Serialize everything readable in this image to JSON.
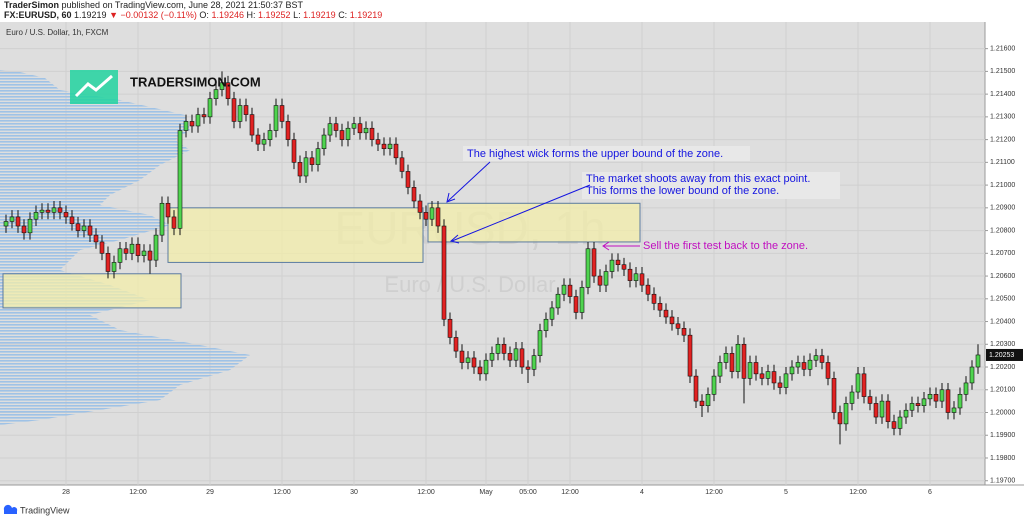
{
  "header": {
    "author": "TraderSimon",
    "published": "published on TradingView.com, June 28, 2021 21:50:37 BST",
    "symbol": "FX:EURUSD, 60",
    "price": 1.19219,
    "change": "▼ −0.00132 (−0.11%)",
    "ohlc": [
      {
        "label": "O:",
        "value": 1.19246
      },
      {
        "label": "H:",
        "value": 1.19252
      },
      {
        "label": "L:",
        "value": 1.19219
      },
      {
        "label": "C:",
        "value": 1.19219
      }
    ]
  },
  "logo": "TRADERSIMON.COM",
  "footer": "TradingView",
  "chart_data": {
    "type": "candlestick",
    "title": "Euro / U.S. Dollar, 1h, FXCM",
    "watermark": [
      "EURUSD, 1h",
      "Euro / U.S. Dollar"
    ],
    "up_color": "#4fd44f",
    "down_color": "#e22222",
    "categories": [
      null,
      null,
      null,
      null,
      null,
      null,
      null,
      null,
      null,
      null,
      "28",
      null,
      null,
      null,
      null,
      null,
      null,
      null,
      null,
      null,
      null,
      null,
      "12:00",
      null,
      null,
      null,
      null,
      null,
      null,
      null,
      null,
      null,
      null,
      null,
      "29",
      null,
      null,
      null,
      null,
      null,
      null,
      null,
      null,
      null,
      null,
      null,
      "12:00",
      null,
      null,
      null,
      null,
      null,
      null,
      null,
      null,
      null,
      null,
      null,
      "30",
      null,
      null,
      null,
      null,
      null,
      null,
      null,
      null,
      null,
      null,
      null,
      "12:00",
      null,
      null,
      null,
      null,
      null,
      null,
      null,
      null,
      null,
      "May",
      null,
      null,
      null,
      null,
      null,
      null,
      "05:00",
      null,
      null,
      null,
      null,
      null,
      null,
      "12:00",
      null,
      null,
      null,
      null,
      null,
      null,
      null,
      null,
      null,
      null,
      null,
      "4",
      null,
      null,
      null,
      null,
      null,
      null,
      null,
      null,
      null,
      null,
      null,
      "12:00",
      null,
      null,
      null,
      null,
      null,
      null,
      null,
      null,
      null,
      null,
      null,
      "5",
      null,
      null,
      null,
      null,
      null,
      null,
      null,
      null,
      null,
      null,
      null,
      "12:00",
      null,
      null,
      null,
      null,
      null,
      null,
      null,
      null,
      null,
      null,
      null,
      "6",
      null,
      null,
      null,
      null,
      null,
      null,
      null,
      null
    ],
    "open": [
      1.2082,
      1.2084,
      1.2086,
      1.2082,
      1.2079,
      1.2085,
      1.2088,
      1.2089,
      1.2088,
      1.209,
      1.2088,
      1.2086,
      1.2083,
      1.208,
      1.2082,
      1.2078,
      1.2075,
      1.207,
      1.2062,
      1.2066,
      1.2072,
      1.207,
      1.2074,
      1.2069,
      1.2071,
      1.2067,
      1.2078,
      1.2092,
      1.2086,
      1.2081,
      1.2124,
      1.2128,
      1.2126,
      1.2131,
      1.213,
      1.2138,
      1.2142,
      1.2145,
      1.2138,
      1.2128,
      1.2135,
      1.2131,
      1.2122,
      1.2118,
      1.212,
      1.2124,
      1.2135,
      1.2128,
      1.212,
      1.211,
      1.2104,
      1.2112,
      1.2109,
      1.2116,
      1.2122,
      1.2127,
      1.2124,
      1.212,
      1.2125,
      1.2127,
      1.2123,
      1.2125,
      1.212,
      1.2118,
      1.2116,
      1.2118,
      1.2112,
      1.2106,
      1.2099,
      1.2093,
      1.2088,
      1.2085,
      1.209,
      1.2082,
      1.2041,
      1.2033,
      1.2027,
      1.2022,
      1.2024,
      1.202,
      1.2017,
      1.2023,
      1.2026,
      1.203,
      1.2026,
      1.2023,
      1.2028,
      1.202,
      1.2019,
      1.2025,
      1.2036,
      1.2041,
      1.2046,
      1.2052,
      1.2056,
      1.2051,
      1.2044,
      1.2055,
      1.2072,
      1.206,
      1.2056,
      1.2062,
      1.2067,
      1.2065,
      1.2063,
      1.2058,
      1.2061,
      1.2056,
      1.2052,
      1.2048,
      1.2045,
      1.2042,
      1.2039,
      1.2037,
      1.2034,
      1.2016,
      1.2005,
      1.2003,
      1.2008,
      1.2016,
      1.2022,
      1.2026,
      1.2018,
      1.203,
      1.2015,
      1.2022,
      1.2017,
      1.2015,
      1.2018,
      1.2013,
      1.2011,
      1.2017,
      1.202,
      1.2022,
      1.2019,
      1.2023,
      1.2025,
      1.2022,
      1.2015,
      1.2,
      1.1995,
      1.2004,
      1.2009,
      1.2017,
      1.2007,
      1.2004,
      1.1998,
      1.2005,
      1.1996,
      1.1993,
      1.1998,
      1.2001,
      1.2004,
      1.2003,
      1.2006,
      1.2008,
      1.2005,
      1.201,
      1.2,
      1.2002,
      1.2008,
      1.2013,
      1.202
    ],
    "high": [
      1.2087,
      1.2089,
      1.2089,
      1.2085,
      1.2088,
      1.2091,
      1.2092,
      1.2092,
      1.2093,
      1.2093,
      1.2091,
      1.2089,
      1.2086,
      1.2085,
      1.2085,
      1.2081,
      1.2078,
      1.2073,
      1.2069,
      1.2075,
      1.2075,
      1.2077,
      1.2077,
      1.2074,
      1.2074,
      1.2081,
      1.2095,
      1.2095,
      1.2089,
      1.2127,
      1.2131,
      1.2131,
      1.2134,
      1.2134,
      1.2141,
      1.2145,
      1.215,
      1.2148,
      1.2141,
      1.2138,
      1.2138,
      1.2134,
      1.2125,
      1.2123,
      1.2127,
      1.2138,
      1.2138,
      1.2131,
      1.2123,
      1.2113,
      1.2115,
      1.2115,
      1.2119,
      1.2125,
      1.213,
      1.213,
      1.2127,
      1.2128,
      1.213,
      1.213,
      1.2128,
      1.2128,
      1.2123,
      1.2121,
      1.2121,
      1.2121,
      1.2115,
      1.2109,
      1.2102,
      1.2096,
      1.2091,
      1.2093,
      1.2093,
      1.2085,
      1.2044,
      1.2036,
      1.203,
      1.2027,
      1.2027,
      1.2023,
      1.2026,
      1.2029,
      1.2033,
      1.2033,
      1.2029,
      1.2031,
      1.2031,
      1.2023,
      1.2028,
      1.2039,
      1.2044,
      1.2049,
      1.2055,
      1.2059,
      1.2059,
      1.2054,
      1.2058,
      1.2075,
      1.2075,
      1.2063,
      1.2065,
      1.207,
      1.207,
      1.2068,
      1.2066,
      1.2064,
      1.2064,
      1.2059,
      1.2055,
      1.2051,
      1.2048,
      1.2045,
      1.2042,
      1.204,
      1.2037,
      1.2019,
      1.2008,
      1.2011,
      1.2019,
      1.2025,
      1.2029,
      1.2029,
      1.2034,
      1.2033,
      1.2025,
      1.2025,
      1.202,
      1.2021,
      1.2021,
      1.2016,
      1.202,
      1.2023,
      1.2025,
      1.2025,
      1.2026,
      1.2028,
      1.2028,
      1.2025,
      1.2018,
      1.2003,
      1.2007,
      1.2012,
      1.202,
      1.202,
      1.201,
      1.2007,
      1.2008,
      1.2008,
      1.1999,
      1.2001,
      1.2004,
      1.2007,
      1.2007,
      1.2009,
      1.2011,
      1.2011,
      1.2013,
      1.2013,
      1.2005,
      1.2011,
      1.2016,
      1.2023,
      1.203
    ],
    "low": [
      1.2079,
      1.2081,
      1.2079,
      1.2076,
      1.2076,
      1.2082,
      1.2085,
      1.2085,
      1.2085,
      1.2085,
      1.2083,
      1.208,
      1.2077,
      1.2077,
      1.2075,
      1.2072,
      1.2067,
      1.2059,
      1.2059,
      1.2063,
      1.2067,
      1.2067,
      1.2066,
      1.2066,
      1.2061,
      1.2064,
      1.2075,
      1.2083,
      1.2078,
      1.2078,
      1.2121,
      1.2123,
      1.2123,
      1.2127,
      1.2127,
      1.2135,
      1.2139,
      1.2135,
      1.2125,
      1.2125,
      1.2128,
      1.2119,
      1.2115,
      1.2115,
      1.2117,
      1.2121,
      1.2125,
      1.2117,
      1.2107,
      1.2101,
      1.2101,
      1.2106,
      1.2106,
      1.2113,
      1.2119,
      1.2121,
      1.2117,
      1.2117,
      1.2122,
      1.212,
      1.212,
      1.2117,
      1.2115,
      1.2113,
      1.2113,
      1.2109,
      1.2103,
      1.2096,
      1.209,
      1.2085,
      1.2082,
      1.2082,
      1.2079,
      1.2038,
      1.203,
      1.2024,
      1.2019,
      1.2019,
      1.2017,
      1.2014,
      1.2014,
      1.202,
      1.2023,
      1.2023,
      1.202,
      1.202,
      1.2017,
      1.2013,
      1.2016,
      1.2022,
      1.2033,
      1.2038,
      1.2043,
      1.2049,
      1.2048,
      1.2041,
      1.2041,
      1.2052,
      1.2057,
      1.2053,
      1.2053,
      1.2059,
      1.2062,
      1.206,
      1.2055,
      1.2055,
      1.2053,
      1.2049,
      1.2045,
      1.2042,
      1.2039,
      1.2036,
      1.2034,
      1.2031,
      1.2013,
      1.2002,
      1.1998,
      1.2,
      1.2005,
      1.2013,
      1.2019,
      1.2015,
      1.2015,
      1.2004,
      1.2012,
      1.2014,
      1.2012,
      1.2012,
      1.201,
      1.2008,
      1.2008,
      1.2014,
      1.2017,
      1.2016,
      1.2016,
      1.202,
      1.2019,
      1.2012,
      1.1997,
      1.1986,
      1.1992,
      1.2001,
      1.2006,
      1.2004,
      1.2001,
      1.1995,
      1.1995,
      1.1993,
      1.199,
      1.199,
      1.1995,
      1.1998,
      1.2,
      1.2,
      1.2003,
      1.2002,
      1.2002,
      1.1997,
      1.1997,
      1.1999,
      1.2005,
      1.201,
      1.2017
    ],
    "close": [
      1.2084,
      1.2086,
      1.2082,
      1.2079,
      1.2085,
      1.2088,
      1.2089,
      1.2088,
      1.209,
      1.2088,
      1.2086,
      1.2083,
      1.208,
      1.2082,
      1.2078,
      1.2075,
      1.207,
      1.2062,
      1.2066,
      1.2072,
      1.207,
      1.2074,
      1.2069,
      1.2071,
      1.2067,
      1.2078,
      1.2092,
      1.2086,
      1.2081,
      1.2124,
      1.2128,
      1.2126,
      1.2131,
      1.213,
      1.2138,
      1.2142,
      1.2145,
      1.2138,
      1.2128,
      1.2135,
      1.2131,
      1.2122,
      1.2118,
      1.212,
      1.2124,
      1.2135,
      1.2128,
      1.212,
      1.211,
      1.2104,
      1.2112,
      1.2109,
      1.2116,
      1.2122,
      1.2127,
      1.2124,
      1.212,
      1.2125,
      1.2127,
      1.2123,
      1.2125,
      1.212,
      1.2118,
      1.2116,
      1.2118,
      1.2112,
      1.2106,
      1.2099,
      1.2093,
      1.2088,
      1.2085,
      1.209,
      1.2082,
      1.2041,
      1.2033,
      1.2027,
      1.2022,
      1.2024,
      1.202,
      1.2017,
      1.2023,
      1.2026,
      1.203,
      1.2026,
      1.2023,
      1.2028,
      1.202,
      1.2019,
      1.2025,
      1.2036,
      1.2041,
      1.2046,
      1.2052,
      1.2056,
      1.2051,
      1.2044,
      1.2055,
      1.2072,
      1.206,
      1.2056,
      1.2062,
      1.2067,
      1.2065,
      1.2063,
      1.2058,
      1.2061,
      1.2056,
      1.2052,
      1.2048,
      1.2045,
      1.2042,
      1.2039,
      1.2037,
      1.2034,
      1.2016,
      1.2005,
      1.2003,
      1.2008,
      1.2016,
      1.2022,
      1.2026,
      1.2018,
      1.203,
      1.2015,
      1.2022,
      1.2017,
      1.2015,
      1.2018,
      1.2013,
      1.2011,
      1.2017,
      1.202,
      1.2022,
      1.2019,
      1.2023,
      1.2025,
      1.2022,
      1.2015,
      1.2,
      1.1995,
      1.2004,
      1.2009,
      1.2017,
      1.2007,
      1.2004,
      1.1998,
      1.2005,
      1.1996,
      1.1993,
      1.1998,
      1.2001,
      1.2004,
      1.2003,
      1.2006,
      1.2008,
      1.2005,
      1.201,
      1.2,
      1.2002,
      1.2008,
      1.2013,
      1.202,
      1.20253
    ],
    "ylim": [
      1.1969,
      1.2166
    ],
    "yticks": [
      {
        "value": 1.216,
        "label": "1.21600"
      },
      {
        "value": 1.215,
        "label": "1.21500"
      },
      {
        "value": 1.214,
        "label": "1.21400"
      },
      {
        "value": 1.213,
        "label": "1.21300"
      },
      {
        "value": 1.212,
        "label": "1.21200"
      },
      {
        "value": 1.211,
        "label": "1.21100"
      },
      {
        "value": 1.21,
        "label": "1.21000"
      },
      {
        "value": 1.209,
        "label": "1.20900"
      },
      {
        "value": 1.208,
        "label": "1.20800"
      },
      {
        "value": 1.207,
        "label": "1.20700"
      },
      {
        "value": 1.206,
        "label": "1.20600"
      },
      {
        "value": 1.205,
        "label": "1.20500"
      },
      {
        "value": 1.204,
        "label": "1.20400"
      },
      {
        "value": 1.203,
        "label": "1.20300"
      },
      {
        "value": 1.202,
        "label": "1.20200"
      },
      {
        "value": 1.201,
        "label": "1.20100"
      },
      {
        "value": 1.2,
        "label": "1.20000"
      },
      {
        "value": 1.199,
        "label": "1.19900"
      },
      {
        "value": 1.198,
        "label": "1.19800"
      },
      {
        "value": 1.197,
        "label": "1.19700"
      }
    ],
    "grid": true,
    "zones": [
      {
        "top": 1.2061,
        "bottom": 1.2046
      },
      {
        "top": 1.209,
        "bottom": 1.2066
      },
      {
        "top": 1.2092,
        "bottom": 1.2075
      }
    ],
    "annotations": [
      "The highest wick forms the upper bound of the zone.",
      "The market shoots away from this exact point.",
      "This forms the lower bound of the zone.",
      "Sell the first test back to the zone."
    ]
  }
}
